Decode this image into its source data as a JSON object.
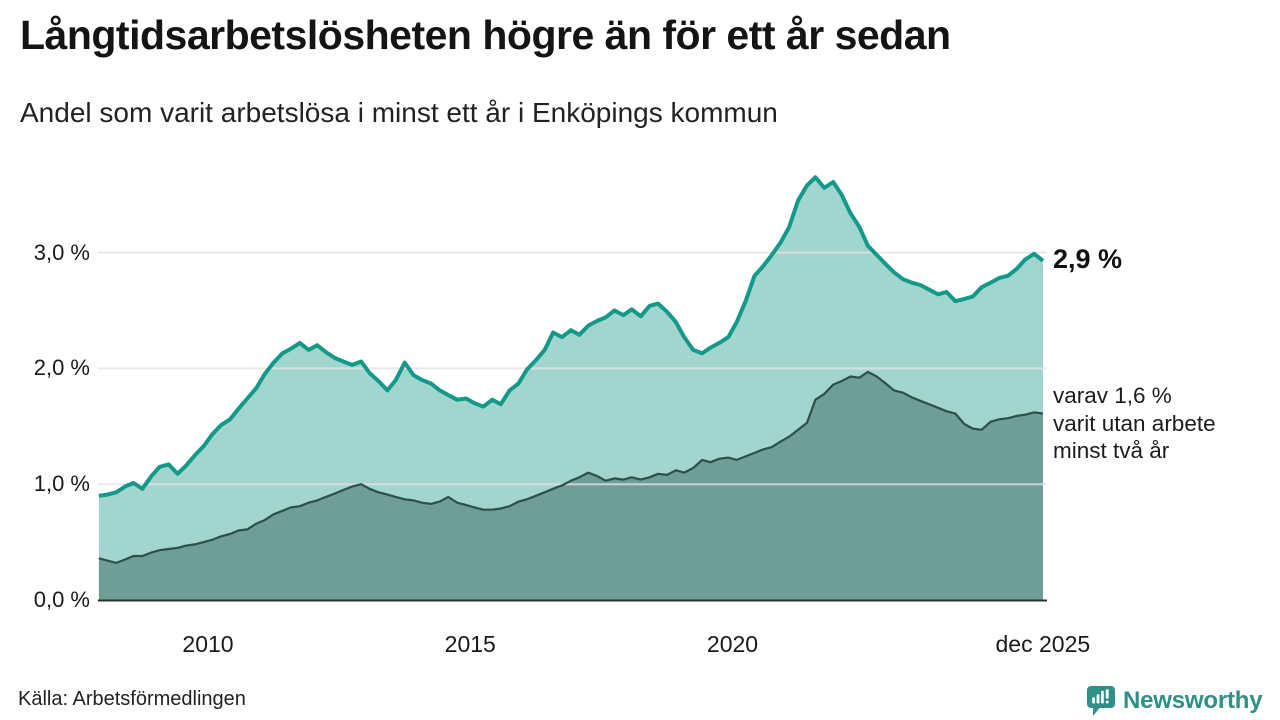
{
  "header": {
    "title": "Långtidsarbetslösheten högre än för ett år sedan",
    "subtitle": "Andel som varit arbetslösa i minst ett år i Enköpings kommun"
  },
  "chart_data": {
    "type": "area",
    "title": "Långtidsarbetslösheten högre än för ett år sedan",
    "subtitle": "Andel som varit arbetslösa i minst ett år i Enköpings kommun",
    "grid": "horizontal",
    "legend_position": "none",
    "ylim": [
      0,
      3.8
    ],
    "y_ticks": [
      {
        "label": "3,0 %",
        "value": 3.0
      },
      {
        "label": "2,0 %",
        "value": 2.0
      },
      {
        "label": "1,0 %",
        "value": 1.0
      },
      {
        "label": "0,0 %",
        "value": 0.0
      }
    ],
    "x_ticks": [
      {
        "label": "2010",
        "year": 2010
      },
      {
        "label": "2015",
        "year": 2015
      },
      {
        "label": "2020",
        "year": 2020
      },
      {
        "label": "dec 2025",
        "year": 2025.917
      }
    ],
    "x_range": [
      2007.92,
      2025.92
    ],
    "x": [
      2007.92,
      2008.08,
      2008.25,
      2008.42,
      2008.58,
      2008.75,
      2008.92,
      2009.08,
      2009.25,
      2009.42,
      2009.58,
      2009.75,
      2009.92,
      2010.08,
      2010.25,
      2010.42,
      2010.58,
      2010.75,
      2010.92,
      2011.08,
      2011.25,
      2011.42,
      2011.58,
      2011.75,
      2011.92,
      2012.08,
      2012.25,
      2012.42,
      2012.58,
      2012.75,
      2012.92,
      2013.08,
      2013.25,
      2013.42,
      2013.58,
      2013.75,
      2013.92,
      2014.08,
      2014.25,
      2014.42,
      2014.58,
      2014.75,
      2014.92,
      2015.08,
      2015.25,
      2015.42,
      2015.58,
      2015.75,
      2015.92,
      2016.08,
      2016.25,
      2016.42,
      2016.58,
      2016.75,
      2016.92,
      2017.08,
      2017.25,
      2017.42,
      2017.58,
      2017.75,
      2017.92,
      2018.08,
      2018.25,
      2018.42,
      2018.58,
      2018.75,
      2018.92,
      2019.08,
      2019.25,
      2019.42,
      2019.58,
      2019.75,
      2019.92,
      2020.08,
      2020.25,
      2020.42,
      2020.58,
      2020.75,
      2020.92,
      2021.08,
      2021.25,
      2021.42,
      2021.58,
      2021.75,
      2021.92,
      2022.08,
      2022.25,
      2022.42,
      2022.58,
      2022.75,
      2022.92,
      2023.08,
      2023.25,
      2023.42,
      2023.58,
      2023.75,
      2023.92,
      2024.08,
      2024.25,
      2024.42,
      2024.58,
      2024.75,
      2024.92,
      2025.08,
      2025.25,
      2025.42,
      2025.58,
      2025.75,
      2025.92
    ],
    "series": [
      {
        "name": "arbetslösa minst ett år",
        "line_color": "#13998a",
        "fill_color": "#a2d5cd",
        "line_width": 4,
        "values": [
          0.9,
          0.91,
          0.93,
          0.98,
          1.01,
          0.96,
          1.07,
          1.15,
          1.17,
          1.09,
          1.16,
          1.25,
          1.33,
          1.43,
          1.51,
          1.56,
          1.65,
          1.74,
          1.83,
          1.95,
          2.05,
          2.13,
          2.17,
          2.22,
          2.16,
          2.2,
          2.14,
          2.09,
          2.06,
          2.03,
          2.06,
          1.96,
          1.89,
          1.81,
          1.9,
          2.05,
          1.94,
          1.9,
          1.87,
          1.81,
          1.77,
          1.73,
          1.74,
          1.7,
          1.67,
          1.73,
          1.69,
          1.81,
          1.87,
          1.99,
          2.07,
          2.16,
          2.31,
          2.27,
          2.33,
          2.29,
          2.37,
          2.41,
          2.44,
          2.5,
          2.46,
          2.51,
          2.45,
          2.54,
          2.56,
          2.49,
          2.4,
          2.27,
          2.16,
          2.13,
          2.18,
          2.22,
          2.27,
          2.4,
          2.58,
          2.8,
          2.88,
          2.98,
          3.09,
          3.22,
          3.45,
          3.58,
          3.65,
          3.56,
          3.61,
          3.5,
          3.34,
          3.22,
          3.06,
          2.98,
          2.9,
          2.83,
          2.77,
          2.74,
          2.72,
          2.68,
          2.64,
          2.66,
          2.58,
          2.6,
          2.62,
          2.7,
          2.74,
          2.78,
          2.8,
          2.86,
          2.94,
          2.99,
          2.93
        ]
      },
      {
        "name": "varav arbetslösa minst två år",
        "line_color": "#2d5049",
        "fill_color": "#6f9e97",
        "line_width": 2.2,
        "values": [
          0.36,
          0.34,
          0.32,
          0.35,
          0.38,
          0.38,
          0.41,
          0.43,
          0.44,
          0.45,
          0.47,
          0.48,
          0.5,
          0.52,
          0.55,
          0.57,
          0.6,
          0.61,
          0.66,
          0.69,
          0.74,
          0.77,
          0.8,
          0.81,
          0.84,
          0.86,
          0.89,
          0.92,
          0.95,
          0.98,
          1.0,
          0.96,
          0.93,
          0.91,
          0.89,
          0.87,
          0.86,
          0.84,
          0.83,
          0.85,
          0.89,
          0.84,
          0.82,
          0.8,
          0.78,
          0.78,
          0.79,
          0.81,
          0.85,
          0.87,
          0.9,
          0.93,
          0.96,
          0.99,
          1.03,
          1.06,
          1.1,
          1.07,
          1.03,
          1.05,
          1.04,
          1.06,
          1.04,
          1.06,
          1.09,
          1.08,
          1.12,
          1.1,
          1.14,
          1.21,
          1.19,
          1.22,
          1.23,
          1.21,
          1.24,
          1.27,
          1.3,
          1.32,
          1.37,
          1.41,
          1.47,
          1.53,
          1.73,
          1.78,
          1.86,
          1.89,
          1.93,
          1.92,
          1.97,
          1.93,
          1.87,
          1.81,
          1.79,
          1.75,
          1.72,
          1.69,
          1.66,
          1.63,
          1.61,
          1.52,
          1.48,
          1.47,
          1.54,
          1.56,
          1.57,
          1.59,
          1.6,
          1.62,
          1.61
        ]
      }
    ],
    "annotations": {
      "end_value_primary": "2,9 %",
      "secondary_lines": [
        "varav 1,6 %",
        "varit utan arbete",
        "minst två år"
      ]
    },
    "colors": {
      "gridline": "#e4e4e4",
      "baseline": "#2f2f2f",
      "brand_teal": "#2e9087"
    }
  },
  "footer": {
    "source": "Källa: Arbetsförmedlingen",
    "brand": "Newsworthy"
  }
}
